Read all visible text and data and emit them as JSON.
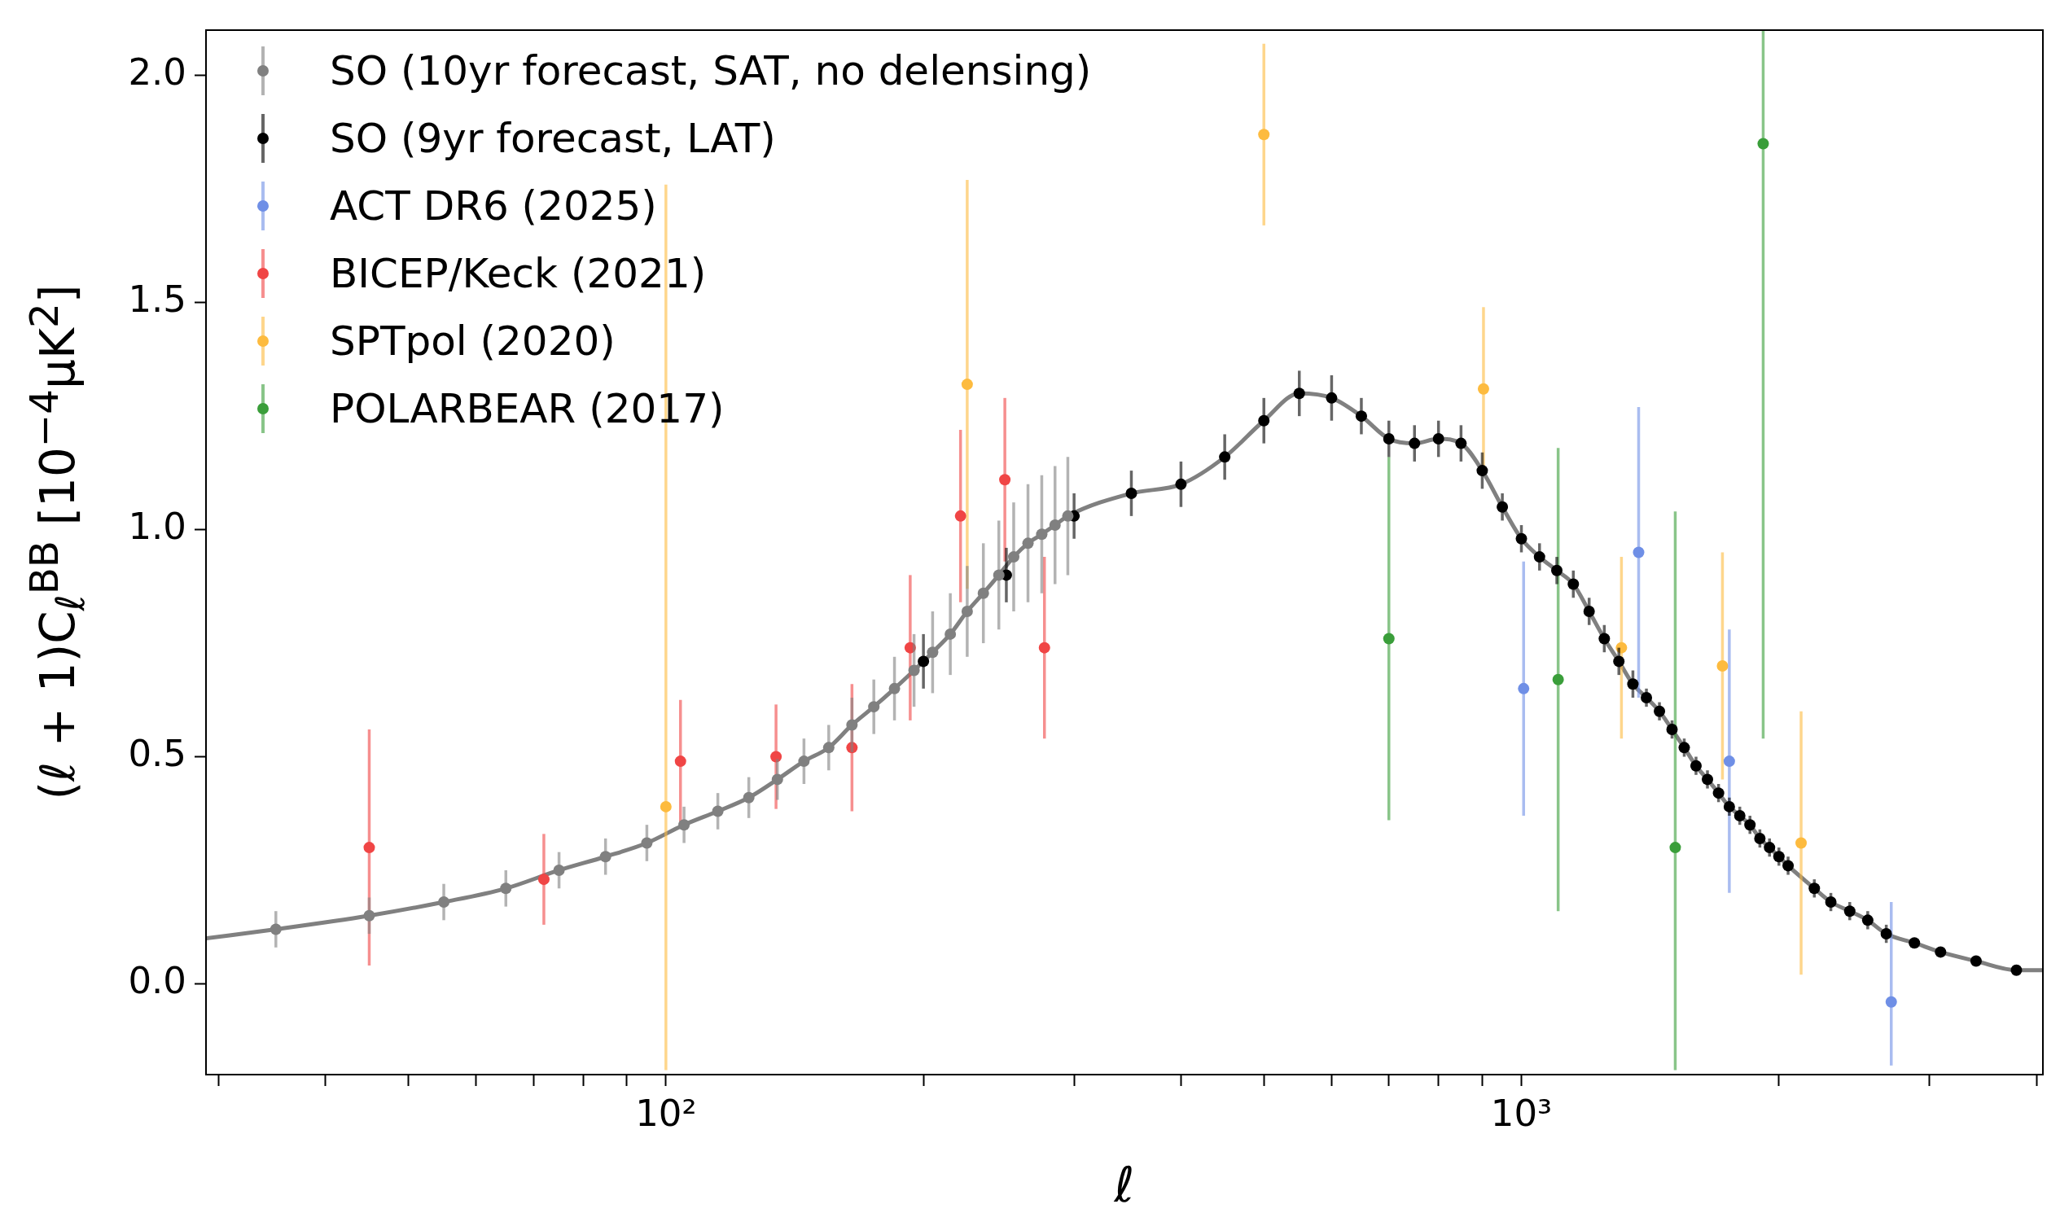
{
  "chart_data": {
    "type": "scatter",
    "xlabel": "ℓ",
    "ylabel": "(ℓ + 1)C$_{ℓ}$$^{BB}$ [10$^{−4}$μK$^{2}$]",
    "log": "x",
    "marker": "circle",
    "legend": "top left",
    "xlim": [
      29,
      4070
    ],
    "ylim": [
      -0.2,
      2.1
    ],
    "xticks": [
      {
        "value": 30,
        "label": null
      },
      {
        "value": 40,
        "label": null
      },
      {
        "value": 50,
        "label": null
      },
      {
        "value": 60,
        "label": null
      },
      {
        "value": 70,
        "label": null
      },
      {
        "value": 80,
        "label": null
      },
      {
        "value": 90,
        "label": null
      },
      {
        "value": 100,
        "label": "10²"
      },
      {
        "value": 200,
        "label": null
      },
      {
        "value": 300,
        "label": null
      },
      {
        "value": 400,
        "label": null
      },
      {
        "value": 500,
        "label": null
      },
      {
        "value": 600,
        "label": null
      },
      {
        "value": 700,
        "label": null
      },
      {
        "value": 800,
        "label": null
      },
      {
        "value": 900,
        "label": null
      },
      {
        "value": 1000,
        "label": "10³"
      },
      {
        "value": 2000,
        "label": null
      },
      {
        "value": 3000,
        "label": null
      },
      {
        "value": 4000,
        "label": null
      }
    ],
    "yticks": [
      {
        "value": 0,
        "label": "0.0"
      },
      {
        "value": 0.5,
        "label": "0.5"
      },
      {
        "value": 1,
        "label": "1.0"
      },
      {
        "value": 1.5,
        "label": "1.5"
      },
      {
        "value": 2,
        "label": "2.0"
      }
    ],
    "series": [
      {
        "type": "line",
        "marker": "none",
        "color": "#808080",
        "x": [
          29,
          35,
          45,
          55,
          65,
          75,
          85,
          95,
          105,
          115,
          125,
          135,
          145,
          155,
          165,
          175,
          185,
          195,
          205,
          215,
          225,
          235,
          245,
          255,
          265,
          275,
          285,
          295,
          350,
          400,
          450,
          500,
          550,
          600,
          650,
          700,
          750,
          800,
          850,
          900,
          950,
          1000,
          1050,
          1100,
          1150,
          1200,
          1250,
          1300,
          1350,
          1400,
          1450,
          1500,
          1550,
          1600,
          1650,
          1700,
          1750,
          1800,
          1850,
          1900,
          1950,
          2000,
          2050,
          2200,
          2300,
          2420,
          2540,
          2670,
          2880,
          3090,
          3400,
          3790,
          4070
        ],
        "values": [
          0.1,
          0.12,
          0.15,
          0.18,
          0.21,
          0.25,
          0.28,
          0.31,
          0.35,
          0.38,
          0.41,
          0.45,
          0.49,
          0.52,
          0.57,
          0.61,
          0.65,
          0.69,
          0.73,
          0.77,
          0.82,
          0.86,
          0.9,
          0.94,
          0.97,
          0.99,
          1.01,
          1.03,
          1.08,
          1.1,
          1.16,
          1.24,
          1.3,
          1.29,
          1.25,
          1.2,
          1.19,
          1.2,
          1.19,
          1.13,
          1.05,
          0.98,
          0.94,
          0.91,
          0.88,
          0.82,
          0.76,
          0.71,
          0.66,
          0.63,
          0.6,
          0.56,
          0.52,
          0.48,
          0.45,
          0.42,
          0.39,
          0.37,
          0.35,
          0.32,
          0.3,
          0.28,
          0.26,
          0.21,
          0.18,
          0.16,
          0.14,
          0.11,
          0.09,
          0.07,
          0.05,
          0.03,
          0.03
        ]
      },
      {
        "name": "SO (10yr forecast, SAT, no delensing)",
        "color": "#808080",
        "x": [
          35,
          45,
          55,
          65,
          75,
          85,
          95,
          105,
          115,
          125,
          135,
          145,
          155,
          165,
          175,
          185,
          195,
          205,
          215,
          225,
          235,
          245,
          255,
          265,
          275,
          285,
          295
        ],
        "values": [
          0.12,
          0.15,
          0.18,
          0.21,
          0.25,
          0.28,
          0.31,
          0.35,
          0.38,
          0.41,
          0.45,
          0.49,
          0.52,
          0.57,
          0.61,
          0.65,
          0.69,
          0.73,
          0.77,
          0.82,
          0.86,
          0.9,
          0.94,
          0.97,
          0.99,
          1.01,
          1.03
        ],
        "errors": [
          0.04,
          0.04,
          0.04,
          0.04,
          0.04,
          0.04,
          0.04,
          0.04,
          0.04,
          0.045,
          0.045,
          0.05,
          0.05,
          0.06,
          0.06,
          0.07,
          0.08,
          0.09,
          0.09,
          0.1,
          0.11,
          0.12,
          0.12,
          0.13,
          0.13,
          0.13,
          0.13
        ]
      },
      {
        "name": "SO (9yr forecast, LAT)",
        "color": "#000000",
        "x": [
          200,
          250,
          300,
          350,
          400,
          450,
          500,
          550,
          600,
          650,
          700,
          750,
          800,
          850,
          900,
          950,
          1000,
          1050,
          1100,
          1150,
          1200,
          1250,
          1300,
          1350,
          1400,
          1450,
          1500,
          1550,
          1600,
          1650,
          1700,
          1750,
          1800,
          1850,
          1900,
          1950,
          2000,
          2050,
          2200,
          2300,
          2420,
          2540,
          2670,
          2880,
          3090,
          3400,
          3790
        ],
        "values": [
          0.71,
          0.9,
          1.03,
          1.08,
          1.1,
          1.16,
          1.24,
          1.3,
          1.29,
          1.25,
          1.2,
          1.19,
          1.2,
          1.19,
          1.13,
          1.05,
          0.98,
          0.94,
          0.91,
          0.88,
          0.82,
          0.76,
          0.71,
          0.66,
          0.63,
          0.6,
          0.56,
          0.52,
          0.48,
          0.45,
          0.42,
          0.39,
          0.37,
          0.35,
          0.32,
          0.3,
          0.28,
          0.26,
          0.21,
          0.18,
          0.16,
          0.14,
          0.11,
          0.09,
          0.07,
          0.05,
          0.03
        ],
        "errors": [
          0.06,
          0.06,
          0.05,
          0.05,
          0.05,
          0.05,
          0.05,
          0.05,
          0.05,
          0.04,
          0.04,
          0.04,
          0.04,
          0.04,
          0.04,
          0.03,
          0.03,
          0.03,
          0.03,
          0.03,
          0.03,
          0.03,
          0.03,
          0.03,
          0.02,
          0.02,
          0.02,
          0.02,
          0.02,
          0.02,
          0.02,
          0.02,
          0.02,
          0.02,
          0.02,
          0.02,
          0.02,
          0.02,
          0.02,
          0.02,
          0.02,
          0.02,
          0.02,
          0.01,
          0.01,
          0.01,
          0.01
        ]
      },
      {
        "name": "ACT DR6 (2025)",
        "color": "#6f8fe6",
        "x": [
          1006,
          1371,
          1750,
          2706
        ],
        "values": [
          0.65,
          0.95,
          0.49,
          -0.04
        ],
        "errors": [
          0.28,
          0.32,
          0.29,
          [
            -0.18,
            0.18
          ]
        ]
      },
      {
        "name": "BICEP/Keck (2021)",
        "color": "#f04545",
        "x": [
          45,
          72,
          104,
          134.5,
          165,
          193,
          221,
          249,
          277
        ],
        "values": [
          0.3,
          0.23,
          0.49,
          0.5,
          0.52,
          0.74,
          1.03,
          1.11,
          0.74
        ],
        "errors": [
          0.26,
          0.1,
          0.135,
          0.115,
          0.14,
          0.16,
          0.19,
          0.18,
          0.2
        ]
      },
      {
        "name": "SPTpol (2020)",
        "color": "#fdbb3f",
        "x": [
          100,
          225,
          500,
          903,
          1309,
          1718,
          2123
        ],
        "values": [
          0.39,
          1.32,
          1.87,
          1.31,
          0.74,
          0.7,
          0.31
        ],
        "errors": [
          [
            -0.19,
            1.76
          ],
          0.45,
          0.2,
          0.18,
          0.2,
          0.25,
          0.29
        ]
      },
      {
        "name": "POLARBEAR (2017)",
        "color": "#3a9e3a",
        "x": [
          700,
          1104,
          1513,
          1917
        ],
        "values": [
          0.76,
          0.67,
          0.3,
          1.85
        ],
        "errors": [
          0.4,
          0.51,
          [
            -0.19,
            1.04
          ],
          [
            0.54,
            2.1
          ]
        ]
      }
    ]
  }
}
